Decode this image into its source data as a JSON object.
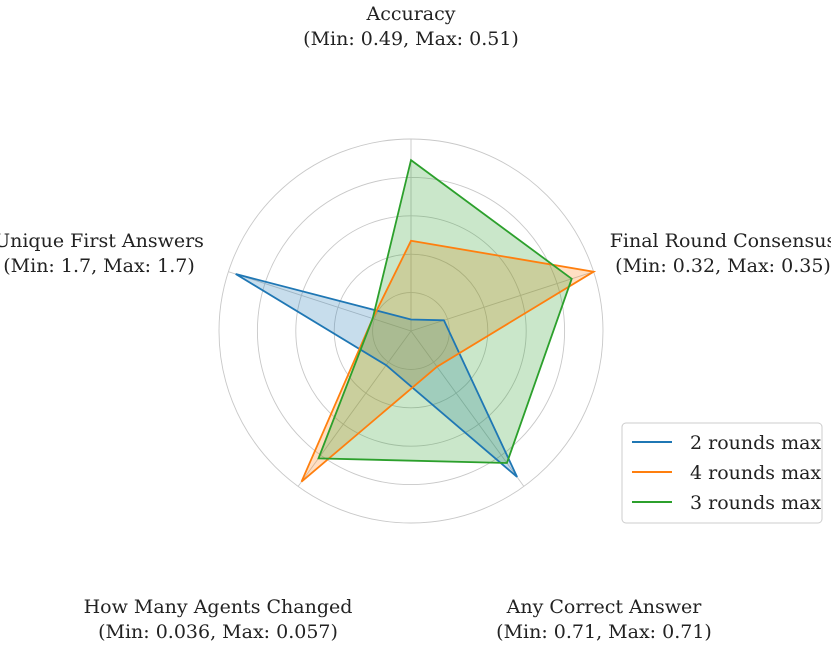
{
  "chart_data": {
    "type": "radar",
    "axes": [
      {
        "label": "Accuracy",
        "range": "(Min: 0.49, Max: 0.51)"
      },
      {
        "label": "Final Round Consensus",
        "range": "(Min: 0.32, Max: 0.35)"
      },
      {
        "label": "Any Correct Answer",
        "range": "(Min: 0.71, Max: 0.71)"
      },
      {
        "label": "How Many Agents Changed",
        "range": "(Min: 0.036, Max: 0.057)"
      },
      {
        "label": "Unique First Answers",
        "range": "(Min: 1.7, Max: 1.7)"
      }
    ],
    "rlim": [
      0,
      1
    ],
    "ring_levels": [
      0.2,
      0.4,
      0.6,
      0.8,
      1.0
    ],
    "grid": true,
    "series": [
      {
        "name": "2 rounds max",
        "color": "#1f77b4",
        "values": [
          0.06,
          0.18,
          0.94,
          0.22,
          0.96
        ]
      },
      {
        "name": "4 rounds max",
        "color": "#ff7f0e",
        "values": [
          0.47,
          1.0,
          0.23,
          0.97,
          0.21
        ]
      },
      {
        "name": "3 rounds max",
        "color": "#2ca02c",
        "values": [
          0.89,
          0.88,
          0.85,
          0.82,
          0.21
        ]
      }
    ],
    "legend": {
      "position": "lower-right"
    }
  }
}
